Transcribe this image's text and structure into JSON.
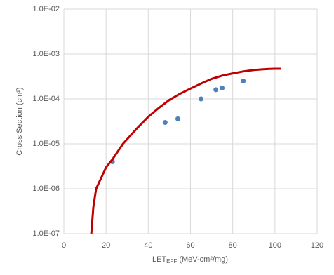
{
  "chart_data": {
    "type": "scatter",
    "y_label": "Cross Section (cm²)",
    "x_label": [
      "LET",
      "EFF",
      " (MeV-cm²/mg)"
    ],
    "xlim": [
      0,
      120
    ],
    "xticks": [
      0,
      20,
      40,
      60,
      80,
      100,
      120
    ],
    "ylim": [
      1e-07,
      0.01
    ],
    "y_log": true,
    "yticks": [
      {
        "value": 1e-07,
        "label": "1.0E-07"
      },
      {
        "value": 1e-06,
        "label": "1.0E-06"
      },
      {
        "value": 1e-05,
        "label": "1.0E-05"
      },
      {
        "value": 0.0001,
        "label": "1.0E-04"
      },
      {
        "value": 0.001,
        "label": "1.0E-03"
      },
      {
        "value": 0.01,
        "label": "1.0E-02"
      }
    ],
    "grid": true,
    "series": [
      {
        "mode": "markers",
        "color": "#4f81bd",
        "x": [
          23,
          48,
          54,
          65,
          72,
          75,
          85
        ],
        "values": [
          4e-06,
          3e-05,
          3.6e-05,
          0.0001,
          0.00016,
          0.000175,
          0.00025
        ]
      },
      {
        "mode": "line",
        "color": "#c00000",
        "x": [
          13,
          14,
          15.3,
          20,
          23,
          28,
          35,
          40,
          45,
          50,
          55,
          60,
          65,
          70,
          75,
          80,
          85,
          90,
          95,
          100,
          103
        ],
        "values": [
          1e-07,
          4e-07,
          1e-06,
          3e-06,
          4.5e-06,
          1e-05,
          2.3e-05,
          4e-05,
          6.3e-05,
          9.5e-05,
          0.00013,
          0.00017,
          0.00022,
          0.00028,
          0.00033,
          0.00037,
          0.00041,
          0.00044,
          0.00046,
          0.00047,
          0.00047
        ]
      }
    ]
  }
}
